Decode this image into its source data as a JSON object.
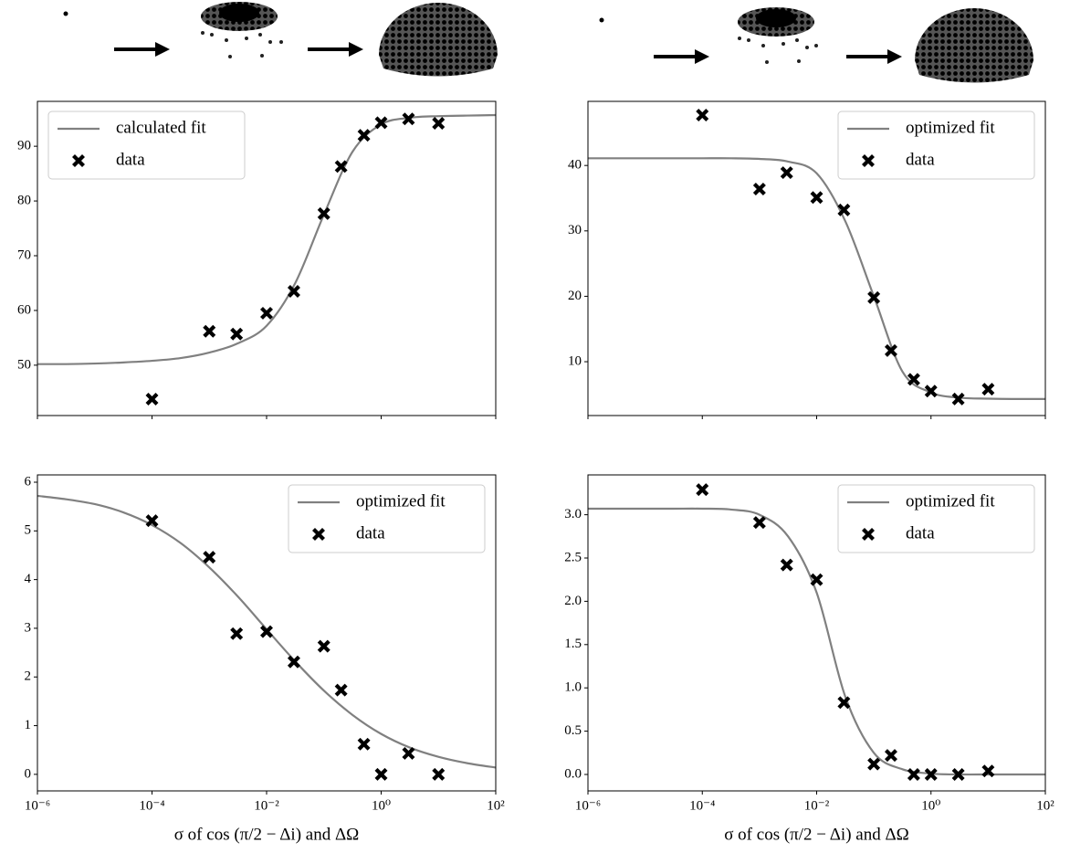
{
  "chart_data": [
    {
      "type": "line",
      "xscale": "log",
      "xlim": [
        1e-06,
        100
      ],
      "xticks": [
        {
          "value": 1e-06,
          "label": "10⁻⁶"
        },
        {
          "value": 0.0001,
          "label": "10⁻⁴"
        },
        {
          "value": 0.01,
          "label": "10⁻²"
        },
        {
          "value": 1,
          "label": "10⁰"
        },
        {
          "value": 100,
          "label": "10²"
        }
      ],
      "xtick_labels": false,
      "ylim": [
        40.8,
        98.2
      ],
      "yticks": [
        50,
        60,
        70,
        80,
        90
      ],
      "legend": "upper left",
      "series": [
        {
          "name": "calculated fit",
          "style": "line",
          "color": "#808080",
          "x": [
            1e-06,
            3.162e-06,
            1e-05,
            3.162e-05,
            0.0001,
            0.0003162,
            0.001,
            0.003162,
            0.01,
            0.03162,
            0.1,
            0.3162,
            1,
            3.162,
            10,
            31.62,
            100
          ],
          "values": [
            50.2,
            50.2,
            50.3,
            50.5,
            50.8,
            51.3,
            52.3,
            54.0,
            57.2,
            65.0,
            77.5,
            89.0,
            94.0,
            95.2,
            95.5,
            95.6,
            95.7
          ]
        },
        {
          "name": "data",
          "style": "x",
          "color": "#000000",
          "x": [
            0.0001,
            0.001,
            0.003,
            0.01,
            0.03,
            0.1,
            0.2,
            0.5,
            1,
            3,
            10
          ],
          "values": [
            43.8,
            56.2,
            55.7,
            59.5,
            63.5,
            77.7,
            86.3,
            92.0,
            94.3,
            95.0,
            94.2
          ]
        }
      ]
    },
    {
      "type": "line",
      "xscale": "log",
      "xlim": [
        1e-06,
        100
      ],
      "xticks": [
        {
          "value": 1e-06,
          "label": "10⁻⁶"
        },
        {
          "value": 0.0001,
          "label": "10⁻⁴"
        },
        {
          "value": 0.01,
          "label": "10⁻²"
        },
        {
          "value": 1,
          "label": "10⁰"
        },
        {
          "value": 100,
          "label": "10²"
        }
      ],
      "xtick_labels": false,
      "ylim": [
        1.77,
        49.8
      ],
      "yticks": [
        10,
        20,
        30,
        40
      ],
      "legend": "upper right",
      "series": [
        {
          "name": "optimized fit",
          "style": "line",
          "color": "#808080",
          "x": [
            1e-06,
            3.162e-06,
            1e-05,
            3.162e-05,
            0.0001,
            0.0003162,
            0.001,
            0.003162,
            0.01,
            0.03162,
            0.1,
            0.3162,
            1,
            3.162,
            10,
            31.62,
            100
          ],
          "values": [
            41.1,
            41.1,
            41.1,
            41.1,
            41.1,
            41.1,
            41.0,
            40.6,
            38.8,
            31.5,
            20.0,
            8.5,
            5.3,
            4.5,
            4.35,
            4.3,
            4.3
          ]
        },
        {
          "name": "data",
          "style": "x",
          "color": "#000000",
          "x": [
            0.0001,
            0.001,
            0.003,
            0.01,
            0.03,
            0.1,
            0.2,
            0.5,
            1,
            3,
            10
          ],
          "values": [
            47.7,
            36.4,
            38.9,
            35.1,
            33.2,
            19.8,
            11.7,
            7.3,
            5.5,
            4.3,
            5.8
          ]
        }
      ]
    },
    {
      "type": "line",
      "xscale": "log",
      "xlim": [
        1e-06,
        100
      ],
      "xticks": [
        {
          "value": 1e-06,
          "label": "10⁻⁶"
        },
        {
          "value": 0.0001,
          "label": "10⁻⁴"
        },
        {
          "value": 0.01,
          "label": "10⁻²"
        },
        {
          "value": 1,
          "label": "10⁰"
        },
        {
          "value": 100,
          "label": "10²"
        }
      ],
      "xtick_labels": true,
      "xlabel": "σ of cos (π/2 − Δi) and ΔΩ",
      "ylim": [
        -0.34,
        6.15
      ],
      "yticks": [
        0,
        1,
        2,
        3,
        4,
        5,
        6
      ],
      "legend": "upper right",
      "series": [
        {
          "name": "optimized fit",
          "style": "line",
          "color": "#808080",
          "x": [
            1e-06,
            3.162e-06,
            1e-05,
            3.162e-05,
            0.0001,
            0.0003162,
            0.001,
            0.003162,
            0.01,
            0.03162,
            0.1,
            0.3162,
            1,
            3.162,
            10,
            31.62,
            100
          ],
          "values": [
            5.72,
            5.65,
            5.55,
            5.38,
            5.12,
            4.75,
            4.25,
            3.65,
            2.98,
            2.32,
            1.72,
            1.22,
            0.83,
            0.55,
            0.36,
            0.23,
            0.14
          ]
        },
        {
          "name": "data",
          "style": "x",
          "color": "#000000",
          "x": [
            0.0001,
            0.001,
            0.003,
            0.01,
            0.03,
            0.1,
            0.2,
            0.5,
            1,
            3,
            10
          ],
          "values": [
            5.21,
            4.46,
            2.89,
            2.93,
            2.31,
            2.63,
            1.73,
            0.62,
            0,
            0.43,
            0
          ]
        }
      ]
    },
    {
      "type": "line",
      "xscale": "log",
      "xlim": [
        1e-06,
        100
      ],
      "xticks": [
        {
          "value": 1e-06,
          "label": "10⁻⁶"
        },
        {
          "value": 0.0001,
          "label": "10⁻⁴"
        },
        {
          "value": 0.01,
          "label": "10⁻²"
        },
        {
          "value": 1,
          "label": "10⁰"
        },
        {
          "value": 100,
          "label": "10²"
        }
      ],
      "xtick_labels": true,
      "xlabel": "σ of cos (π/2 − Δi) and ΔΩ",
      "ylim": [
        -0.19,
        3.46
      ],
      "yticks": [
        {
          "value": 0,
          "label": "0.0"
        },
        0.5,
        {
          "value": 1,
          "label": "1.0"
        },
        1.5,
        {
          "value": 2,
          "label": "2.0"
        },
        2.5,
        {
          "value": 3,
          "label": "3.0"
        }
      ],
      "legend": "upper right",
      "series": [
        {
          "name": "optimized fit",
          "style": "line",
          "color": "#808080",
          "x": [
            1e-06,
            3.162e-06,
            1e-05,
            3.162e-05,
            0.0001,
            0.0003162,
            0.001,
            0.003162,
            0.01,
            0.03162,
            0.1,
            0.3162,
            1,
            3.162,
            10,
            31.62,
            100
          ],
          "values": [
            3.07,
            3.07,
            3.07,
            3.07,
            3.07,
            3.06,
            3.0,
            2.75,
            2.1,
            0.9,
            0.25,
            0.06,
            0.01,
            0,
            0,
            0,
            0
          ]
        },
        {
          "name": "data",
          "style": "x",
          "color": "#000000",
          "x": [
            0.0001,
            0.001,
            0.003,
            0.01,
            0.03,
            0.1,
            0.2,
            0.5,
            1,
            3,
            10
          ],
          "values": [
            3.29,
            2.91,
            2.42,
            2.25,
            0.83,
            0.12,
            0.22,
            0,
            0,
            0,
            0.04
          ]
        }
      ]
    }
  ]
}
